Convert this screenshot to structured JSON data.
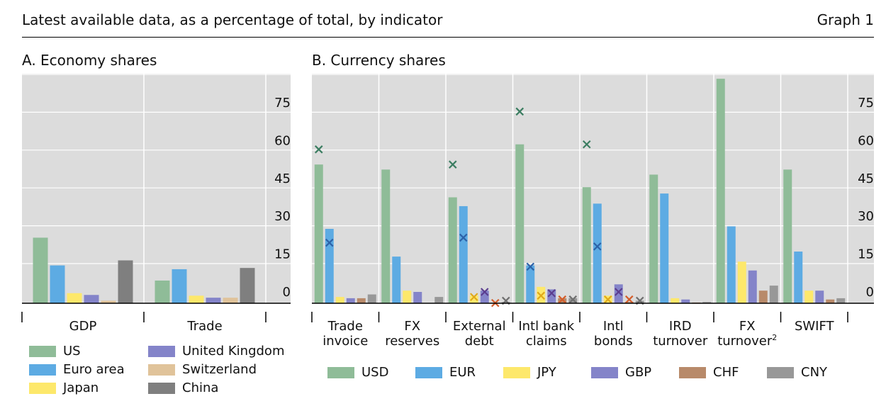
{
  "header": {
    "subtitle": "Latest available data, as a percentage of total, by indicator",
    "graph_label": "Graph 1"
  },
  "colors": {
    "US": "#8fbc98",
    "Euro area": "#5dabe3",
    "Japan": "#fde86b",
    "United Kingdom": "#8484c9",
    "Switzerland": "#e0c39a",
    "China": "#7f7f7f",
    "USD": "#8fbc98",
    "EUR": "#5dabe3",
    "JPY": "#fde86b",
    "GBP": "#8484c9",
    "CHF": "#b88a6a",
    "CNY": "#989898",
    "cross_USD": "#3b7d61",
    "cross_EUR": "#2d62a8",
    "cross_JPY": "#e0a91a",
    "cross_GBP": "#5b3d8f",
    "cross_CHF": "#d45d2a",
    "cross_CNY": "#6f6f6f",
    "plot_bg": "#dcdcdc"
  },
  "chart_data": [
    {
      "type": "bar",
      "title": "A. Economy shares",
      "categories": [
        "GDP",
        "Trade"
      ],
      "ylim": [
        -3,
        90
      ],
      "yticks": [
        0,
        15,
        30,
        45,
        60,
        75
      ],
      "legend_position": "bottom",
      "series": [
        {
          "name": "US",
          "values": [
            26,
            9
          ]
        },
        {
          "name": "Euro area",
          "values": [
            15,
            13.5
          ]
        },
        {
          "name": "Japan",
          "values": [
            4,
            3
          ]
        },
        {
          "name": "United Kingdom",
          "values": [
            3.3,
            2.2
          ]
        },
        {
          "name": "Switzerland",
          "values": [
            1,
            2.2
          ]
        },
        {
          "name": "China",
          "values": [
            17,
            14
          ]
        }
      ]
    },
    {
      "type": "bar",
      "title": "B. Currency shares",
      "categories": [
        "Trade invoice",
        "FX reserves",
        "External debt",
        "Intl bank claims",
        "Intl bonds",
        "IRD turnover",
        "FX turnover",
        "SWIFT"
      ],
      "category_labels": [
        [
          "Trade",
          "invoice"
        ],
        [
          "FX",
          "reserves"
        ],
        [
          "External",
          "debt"
        ],
        [
          "Intl bank",
          "claims"
        ],
        [
          "Intl",
          "bonds"
        ],
        [
          "IRD",
          "turnover"
        ],
        [
          "FX",
          "turnover"
        ],
        [
          "SWIFT",
          ""
        ]
      ],
      "footnote_marks": [
        "",
        "",
        "",
        "",
        "",
        "",
        "2",
        ""
      ],
      "ylim": [
        -3,
        90
      ],
      "yticks": [
        0,
        15,
        30,
        45,
        60,
        75
      ],
      "legend_position": "bottom",
      "series": [
        {
          "name": "USD",
          "values": [
            55,
            53,
            42,
            63,
            46,
            51,
            89,
            53
          ],
          "markers": [
            61,
            null,
            55,
            76,
            63,
            null,
            null,
            null
          ]
        },
        {
          "name": "EUR",
          "values": [
            29.5,
            18.5,
            38.5,
            15,
            39.5,
            43.5,
            30.5,
            20.5
          ],
          "markers": [
            24,
            null,
            26,
            14.5,
            22.5,
            null,
            null,
            null
          ]
        },
        {
          "name": "JPY",
          "values": [
            2.5,
            5,
            3,
            6.5,
            3,
            2,
            16.5,
            5
          ],
          "markers": [
            null,
            null,
            2.5,
            3,
            1.5,
            null,
            null,
            null
          ]
        },
        {
          "name": "GBP",
          "values": [
            2,
            4.5,
            5,
            5.5,
            7.5,
            1.5,
            13,
            5
          ],
          "markers": [
            null,
            null,
            4.5,
            4,
            4.5,
            null,
            null,
            null
          ]
        },
        {
          "name": "CHF",
          "values": [
            2,
            0,
            0,
            2,
            0.5,
            0.3,
            5,
            1.5
          ],
          "markers": [
            null,
            null,
            0.1,
            1.5,
            1.5,
            null,
            null,
            null
          ]
        },
        {
          "name": "CNY",
          "values": [
            3.5,
            2.5,
            0.5,
            2,
            1,
            0.5,
            7,
            2
          ],
          "markers": [
            null,
            null,
            1,
            1.5,
            1,
            null,
            null,
            null
          ]
        }
      ]
    }
  ]
}
